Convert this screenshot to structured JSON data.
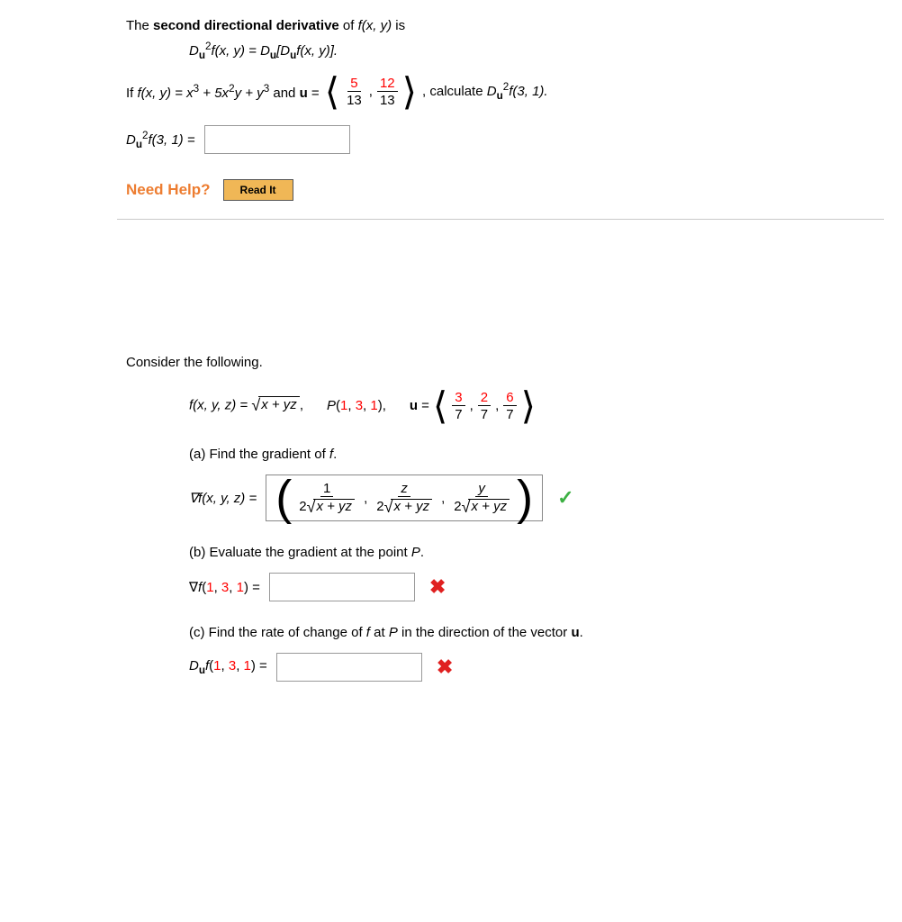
{
  "problem1": {
    "line1_pre": "The ",
    "line1_bold": "second directional derivative",
    "line1_post": " of  ",
    "line1_fxy": "f(x, y)",
    "line1_end": "  is",
    "formula_lhs_pre": "D",
    "u_sub": "u",
    "formula_lhs_postsup": "f(x, y) = D",
    "formula_bracket": "[D",
    "formula_after": "f(x, y)].",
    "if_pre": "If  ",
    "fxy_eq": "f(x, y) = x",
    "plus_5x2y": " + 5x",
    "y_plus_y3": "y + y",
    "and_u_eq": " and ",
    "u_bold": "u",
    "eq": " = ",
    "frac_a_num": "5",
    "frac_a_den": "13",
    "comma": ", ",
    "frac_b_num": "12",
    "frac_b_den": "13",
    "calc_text": ",  calculate  ",
    "rhs_D": "D",
    "rhs_f31": "f(3, 1).",
    "answer_lhs": "D",
    "answer_f31_eq": "f(3, 1) = ",
    "need_help": "Need Help?",
    "read_it": "Read It",
    "sup2": "2",
    "sup3": "3"
  },
  "problem2": {
    "consider": "Consider the following.",
    "fdef_pre": "f(x, y, z) = ",
    "sqrt_body": "x + yz",
    "p_label": "P(1, 3, 1),",
    "u_bold": "u",
    "eq": " = ",
    "u1_num": "3",
    "u1_den": "7",
    "u2_num": "2",
    "u2_den": "7",
    "u3_num": "6",
    "u3_den": "7",
    "a_text": "(a) Find the gradient of ",
    "f_ital": "f",
    "period": ".",
    "grad_lhs": "∇f(x, y, z) = ",
    "g_num1": "1",
    "g_num2": "z",
    "g_num3": "y",
    "g_den_pre": "2",
    "g_den_body": "x + yz",
    "b_text": "(b) Evaluate the gradient at the point ",
    "p_ital": "P",
    "grad_b_lhs": "∇f(1, 3, 1) = ",
    "c_text_pre": "(c) Find the rate of change of ",
    "c_text_mid": " at ",
    "c_text_post": " in the direction of the vector ",
    "D_pre": "D",
    "du_f": "f(1, 3, 1) = ",
    "comma": ",",
    "sqrt_sym": "√"
  },
  "icons": {
    "check": "✓",
    "x": "✖"
  }
}
